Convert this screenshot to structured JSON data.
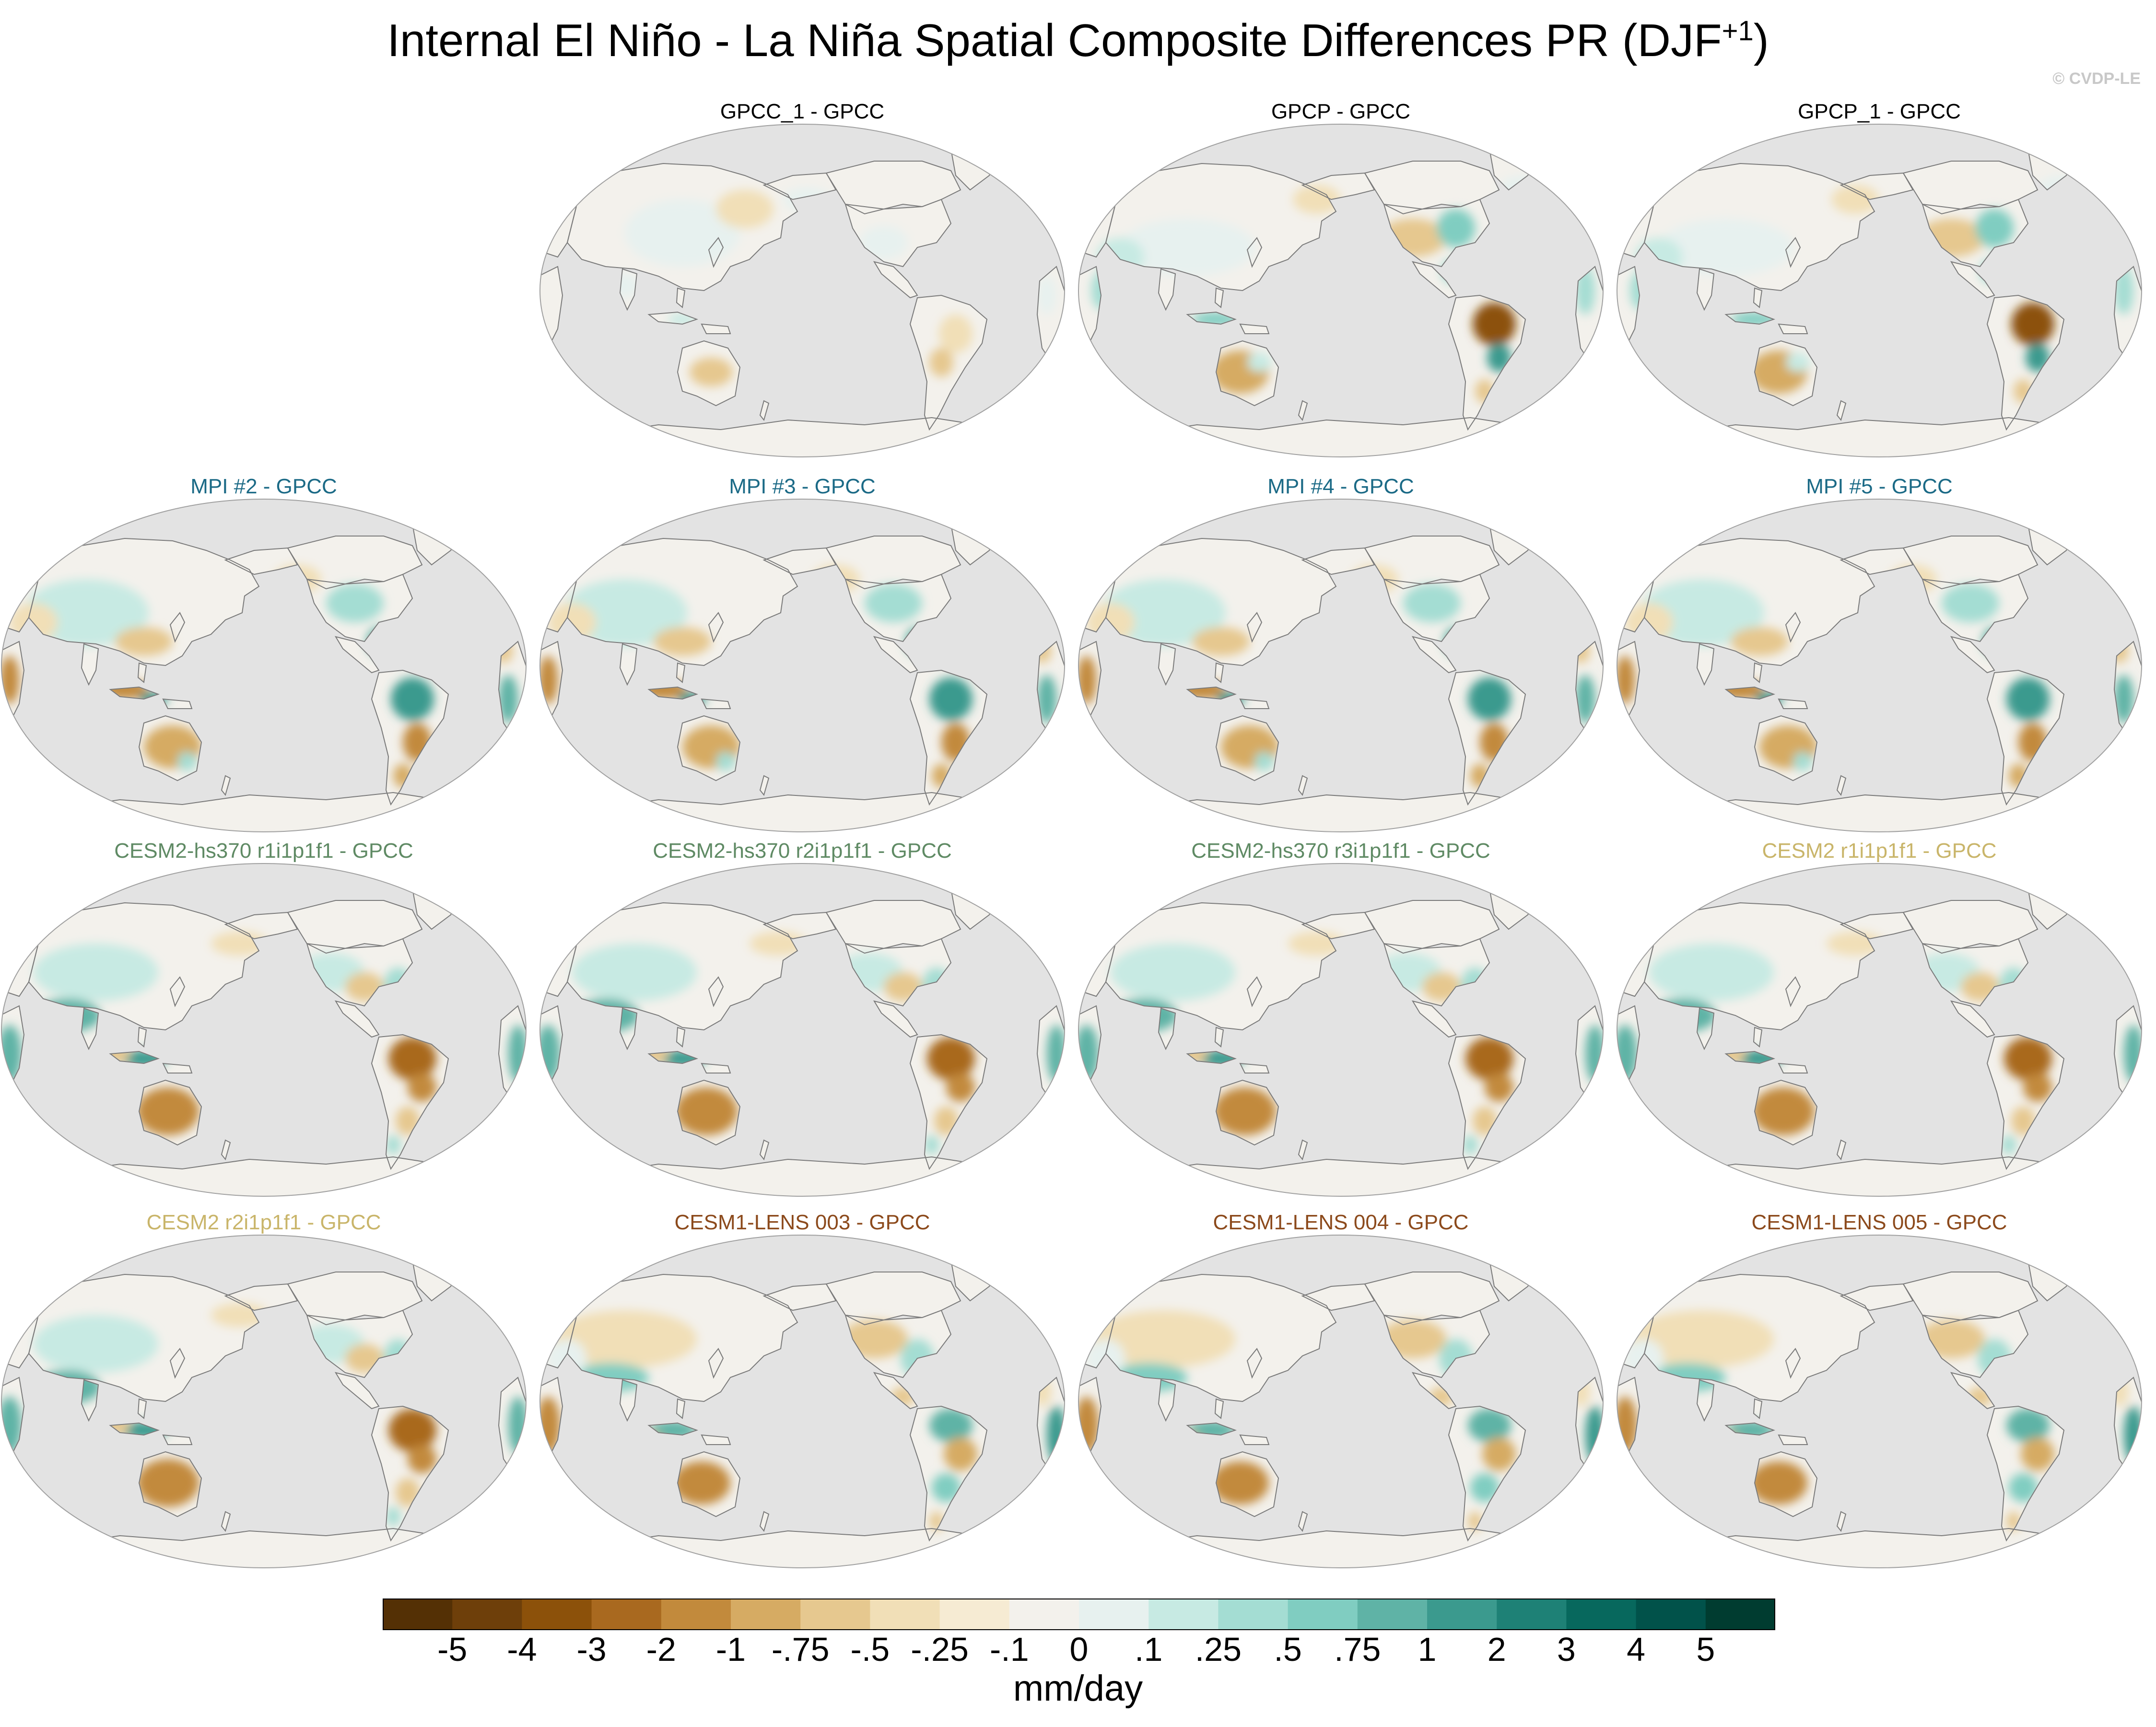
{
  "figure": {
    "title_main": "Internal El Niño - La Niña Spatial Composite Differences PR (DJF",
    "title_sup": "+1",
    "title_close": ")",
    "credit": "© CVDP-LE"
  },
  "panels": [
    {
      "label": "GPCC_1 - GPCC",
      "color": "#000000",
      "pattern": "obs1"
    },
    {
      "label": "GPCP - GPCC",
      "color": "#000000",
      "pattern": "obs2"
    },
    {
      "label": "GPCP_1 - GPCC",
      "color": "#000000",
      "pattern": "obs2"
    },
    {
      "label": "MPI #2 - GPCC",
      "color": "#1b6a86",
      "pattern": "mpi"
    },
    {
      "label": "MPI #3 - GPCC",
      "color": "#1b6a86",
      "pattern": "mpi"
    },
    {
      "label": "MPI #4 - GPCC",
      "color": "#1b6a86",
      "pattern": "mpi"
    },
    {
      "label": "MPI #5 - GPCC",
      "color": "#1b6a86",
      "pattern": "mpi"
    },
    {
      "label": "CESM2-hs370 r1i1p1f1 - GPCC",
      "color": "#5f8a64",
      "pattern": "cesm"
    },
    {
      "label": "CESM2-hs370 r2i1p1f1 - GPCC",
      "color": "#5f8a64",
      "pattern": "cesm"
    },
    {
      "label": "CESM2-hs370 r3i1p1f1 - GPCC",
      "color": "#5f8a64",
      "pattern": "cesm"
    },
    {
      "label": "CESM2 r1i1p1f1 - GPCC",
      "color": "#c9b56a",
      "pattern": "cesm"
    },
    {
      "label": "CESM2 r2i1p1f1 - GPCC",
      "color": "#c9b56a",
      "pattern": "cesm"
    },
    {
      "label": "CESM1-LENS 003 - GPCC",
      "color": "#8c4a1c",
      "pattern": "lens"
    },
    {
      "label": "CESM1-LENS 004 - GPCC",
      "color": "#8c4a1c",
      "pattern": "lens"
    },
    {
      "label": "CESM1-LENS 005 - GPCC",
      "color": "#8c4a1c",
      "pattern": "lens"
    }
  ],
  "colorbar": {
    "levels": [
      "-5",
      "-4",
      "-3",
      "-2",
      "-1",
      "-.75",
      "-.5",
      "-.25",
      "-.1",
      "0",
      ".1",
      ".25",
      ".5",
      ".75",
      "1",
      "2",
      "3",
      "4",
      "5"
    ],
    "colors": [
      "#543005",
      "#6e3f0a",
      "#8c510a",
      "#a9691f",
      "#c28a3c",
      "#d6ab63",
      "#e6c88f",
      "#f1dfb7",
      "#f6ebd3",
      "#f3f1ec",
      "#e7f1ef",
      "#c7eae3",
      "#a4ddd3",
      "#80cdc1",
      "#5fb3a6",
      "#3b9a8e",
      "#1e8176",
      "#07685d",
      "#01524a",
      "#003c30"
    ],
    "units": "mm/day"
  },
  "map_colors": {
    "ocean": "#e3e3e3",
    "coast": "#7a7a7a",
    "border": "#a0a0a0"
  }
}
